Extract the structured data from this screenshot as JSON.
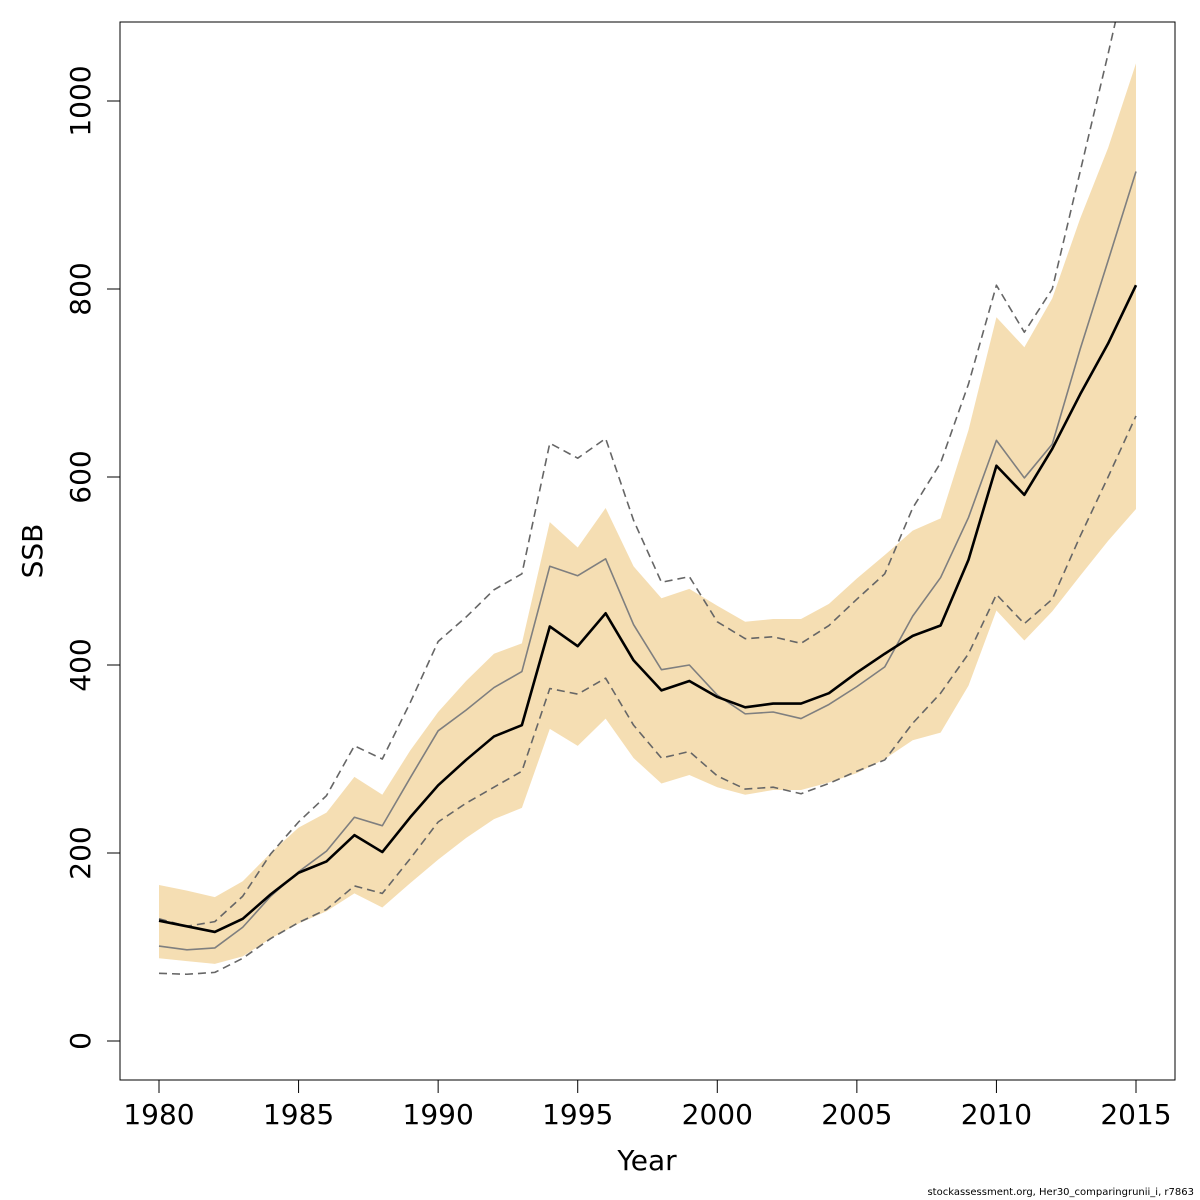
{
  "chart_data": {
    "type": "line",
    "xlabel": "Year",
    "ylabel": "SSB",
    "xlim": [
      1980,
      2015
    ],
    "ylim": [
      0,
      1000
    ],
    "x_ticks": [
      1980,
      1985,
      1990,
      1995,
      2000,
      2005,
      2010,
      2015
    ],
    "y_ticks": [
      0,
      200,
      400,
      600,
      800,
      1000
    ],
    "grid": false,
    "legend": "none",
    "colors": {
      "band": "#f5deb3",
      "main": "#000000",
      "alt": "#7f7f7f",
      "alt_ci": "#666666"
    },
    "x": [
      1980,
      1981,
      1982,
      1983,
      1984,
      1985,
      1986,
      1987,
      1988,
      1989,
      1990,
      1991,
      1992,
      1993,
      1994,
      1995,
      1996,
      1997,
      1998,
      1999,
      2000,
      2001,
      2002,
      2003,
      2004,
      2005,
      2006,
      2007,
      2008,
      2009,
      2010,
      2011,
      2012,
      2013,
      2014,
      2015
    ],
    "series": [
      {
        "role": "band-upper",
        "values": [
          166,
          160,
          153,
          170,
          200,
          227,
          243,
          281,
          262,
          309,
          350,
          383,
          412,
          423,
          552,
          525,
          567,
          505,
          471,
          481,
          463,
          446,
          449,
          449,
          465,
          492,
          517,
          543,
          556,
          650,
          770,
          738,
          790,
          875,
          950,
          1040
        ]
      },
      {
        "role": "band-lower",
        "values": [
          88,
          85,
          82,
          90,
          109,
          125,
          138,
          157,
          142,
          168,
          193,
          216,
          236,
          248,
          332,
          314,
          343,
          301,
          274,
          283,
          270,
          262,
          267,
          267,
          275,
          285,
          300,
          320,
          328,
          378,
          458,
          426,
          457,
          495,
          532,
          566
        ]
      },
      {
        "role": "main",
        "values": [
          128,
          122,
          116,
          130,
          156,
          179,
          191,
          219,
          201,
          238,
          272,
          299,
          324,
          336,
          441,
          420,
          455,
          405,
          373,
          383,
          366,
          355,
          359,
          359,
          370,
          392,
          412,
          431,
          442,
          512,
          612,
          581,
          630,
          688,
          742,
          804
        ]
      },
      {
        "role": "alt",
        "values": [
          101,
          97,
          99,
          121,
          154,
          180,
          202,
          238,
          229,
          280,
          330,
          352,
          376,
          393,
          505,
          495,
          513,
          443,
          395,
          400,
          368,
          348,
          350,
          343,
          358,
          377,
          398,
          452,
          493,
          557,
          639,
          599,
          635,
          736,
          830,
          925
        ]
      },
      {
        "role": "alt-upper",
        "values": [
          130,
          122,
          127,
          154,
          199,
          233,
          261,
          314,
          300,
          360,
          425,
          451,
          480,
          497,
          636,
          620,
          641,
          554,
          488,
          494,
          446,
          428,
          430,
          423,
          442,
          470,
          497,
          567,
          615,
          699,
          804,
          754,
          800,
          925,
          1050,
          1180
        ]
      },
      {
        "role": "alt-lower",
        "values": [
          72,
          71,
          73,
          88,
          109,
          126,
          140,
          165,
          157,
          194,
          233,
          253,
          270,
          287,
          375,
          369,
          386,
          336,
          301,
          308,
          282,
          268,
          270,
          263,
          274,
          287,
          299,
          338,
          370,
          412,
          475,
          444,
          470,
          537,
          600,
          665
        ]
      }
    ]
  },
  "footer_text": "stockassessment.org, Her30_comparingrunii_i, r7863"
}
